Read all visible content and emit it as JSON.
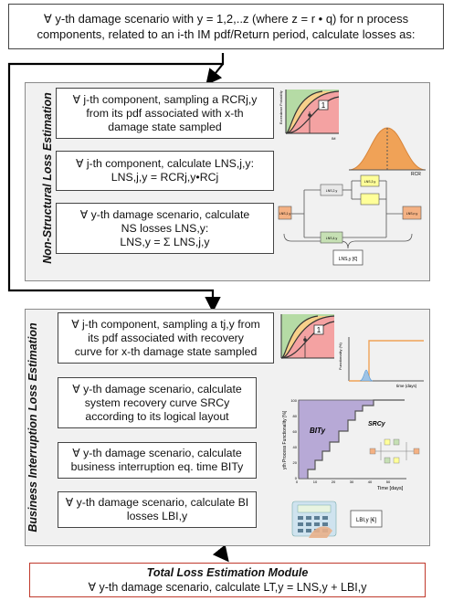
{
  "top_box": {
    "line1": "∀ y-th damage scenario with y = 1,2,..z (where z = r • q) for n process",
    "line2": "components, related to an i-th IM pdf/Return period, calculate losses as:"
  },
  "sections": {
    "nonstructural_title": "Non-Structural Loss Estimation",
    "business_title": "Business Interruption Loss Estimation"
  },
  "ns_boxes": {
    "b1": [
      "∀ j-th component, sampling a RCRj,y",
      "from its pdf associated with x-th",
      "damage state sampled"
    ],
    "b2": [
      "∀ j-th component, calculate LNS,j,y:",
      "LNS,j,y = RCRj,y•RCj"
    ],
    "b3": [
      "∀ y-th damage scenario, calculate",
      "NS losses LNS,y:",
      "LNS,y = Σ LNS,j,y"
    ]
  },
  "bi_boxes": {
    "b1": [
      "∀ j-th component, sampling a tj,y from",
      "its pdf associated with recovery",
      "curve for x-th damage state sampled"
    ],
    "b2": [
      "∀ y-th damage scenario, calculate",
      "system recovery curve SRCy",
      "according to its logical layout"
    ],
    "b3": [
      "∀ y-th damage scenario, calculate",
      "business interruption eq. time BITy"
    ],
    "b4": [
      "∀ y-th damage scenario, calculate BI",
      "losses LBI,y"
    ]
  },
  "total_box": {
    "title": "Total Loss Estimation Module",
    "formula": "∀ y-th damage scenario, calculate LT,y = LNS,y + LBI,y"
  },
  "figure_labels": {
    "fragility_marker": "1",
    "fragility_xlabel": "IM",
    "fragility_ylabel": "Exceedance Probability",
    "pdf_xlabel": "RCR",
    "block_a": "LNS,1,y",
    "block_b": "LNS,2,y",
    "block_c": "LNS,3,y",
    "block_d": "LNS,4,y",
    "block_e": "LNS,n,y",
    "sum_box": "LNS,y [€]",
    "recovery_xlabel": "time (days)",
    "recovery_ylabel": "Functionality (%)",
    "src_ylabel": "yth Process Functionality [%]",
    "src_xlabel": "Time [days]",
    "bit_label": "BITy",
    "src_label": "SRCy",
    "src_xticks": [
      "0",
      "10",
      "20",
      "30",
      "40",
      "50"
    ],
    "src_yticks": [
      "0",
      "20",
      "40",
      "60",
      "80",
      "100"
    ],
    "bi_box": "LBI,y [€]"
  },
  "colors": {
    "section_bg": "#f1f1f1",
    "total_border": "#c0392b",
    "pdf_fill": "#f0a257",
    "bit_fill": "#b7a9d6"
  }
}
